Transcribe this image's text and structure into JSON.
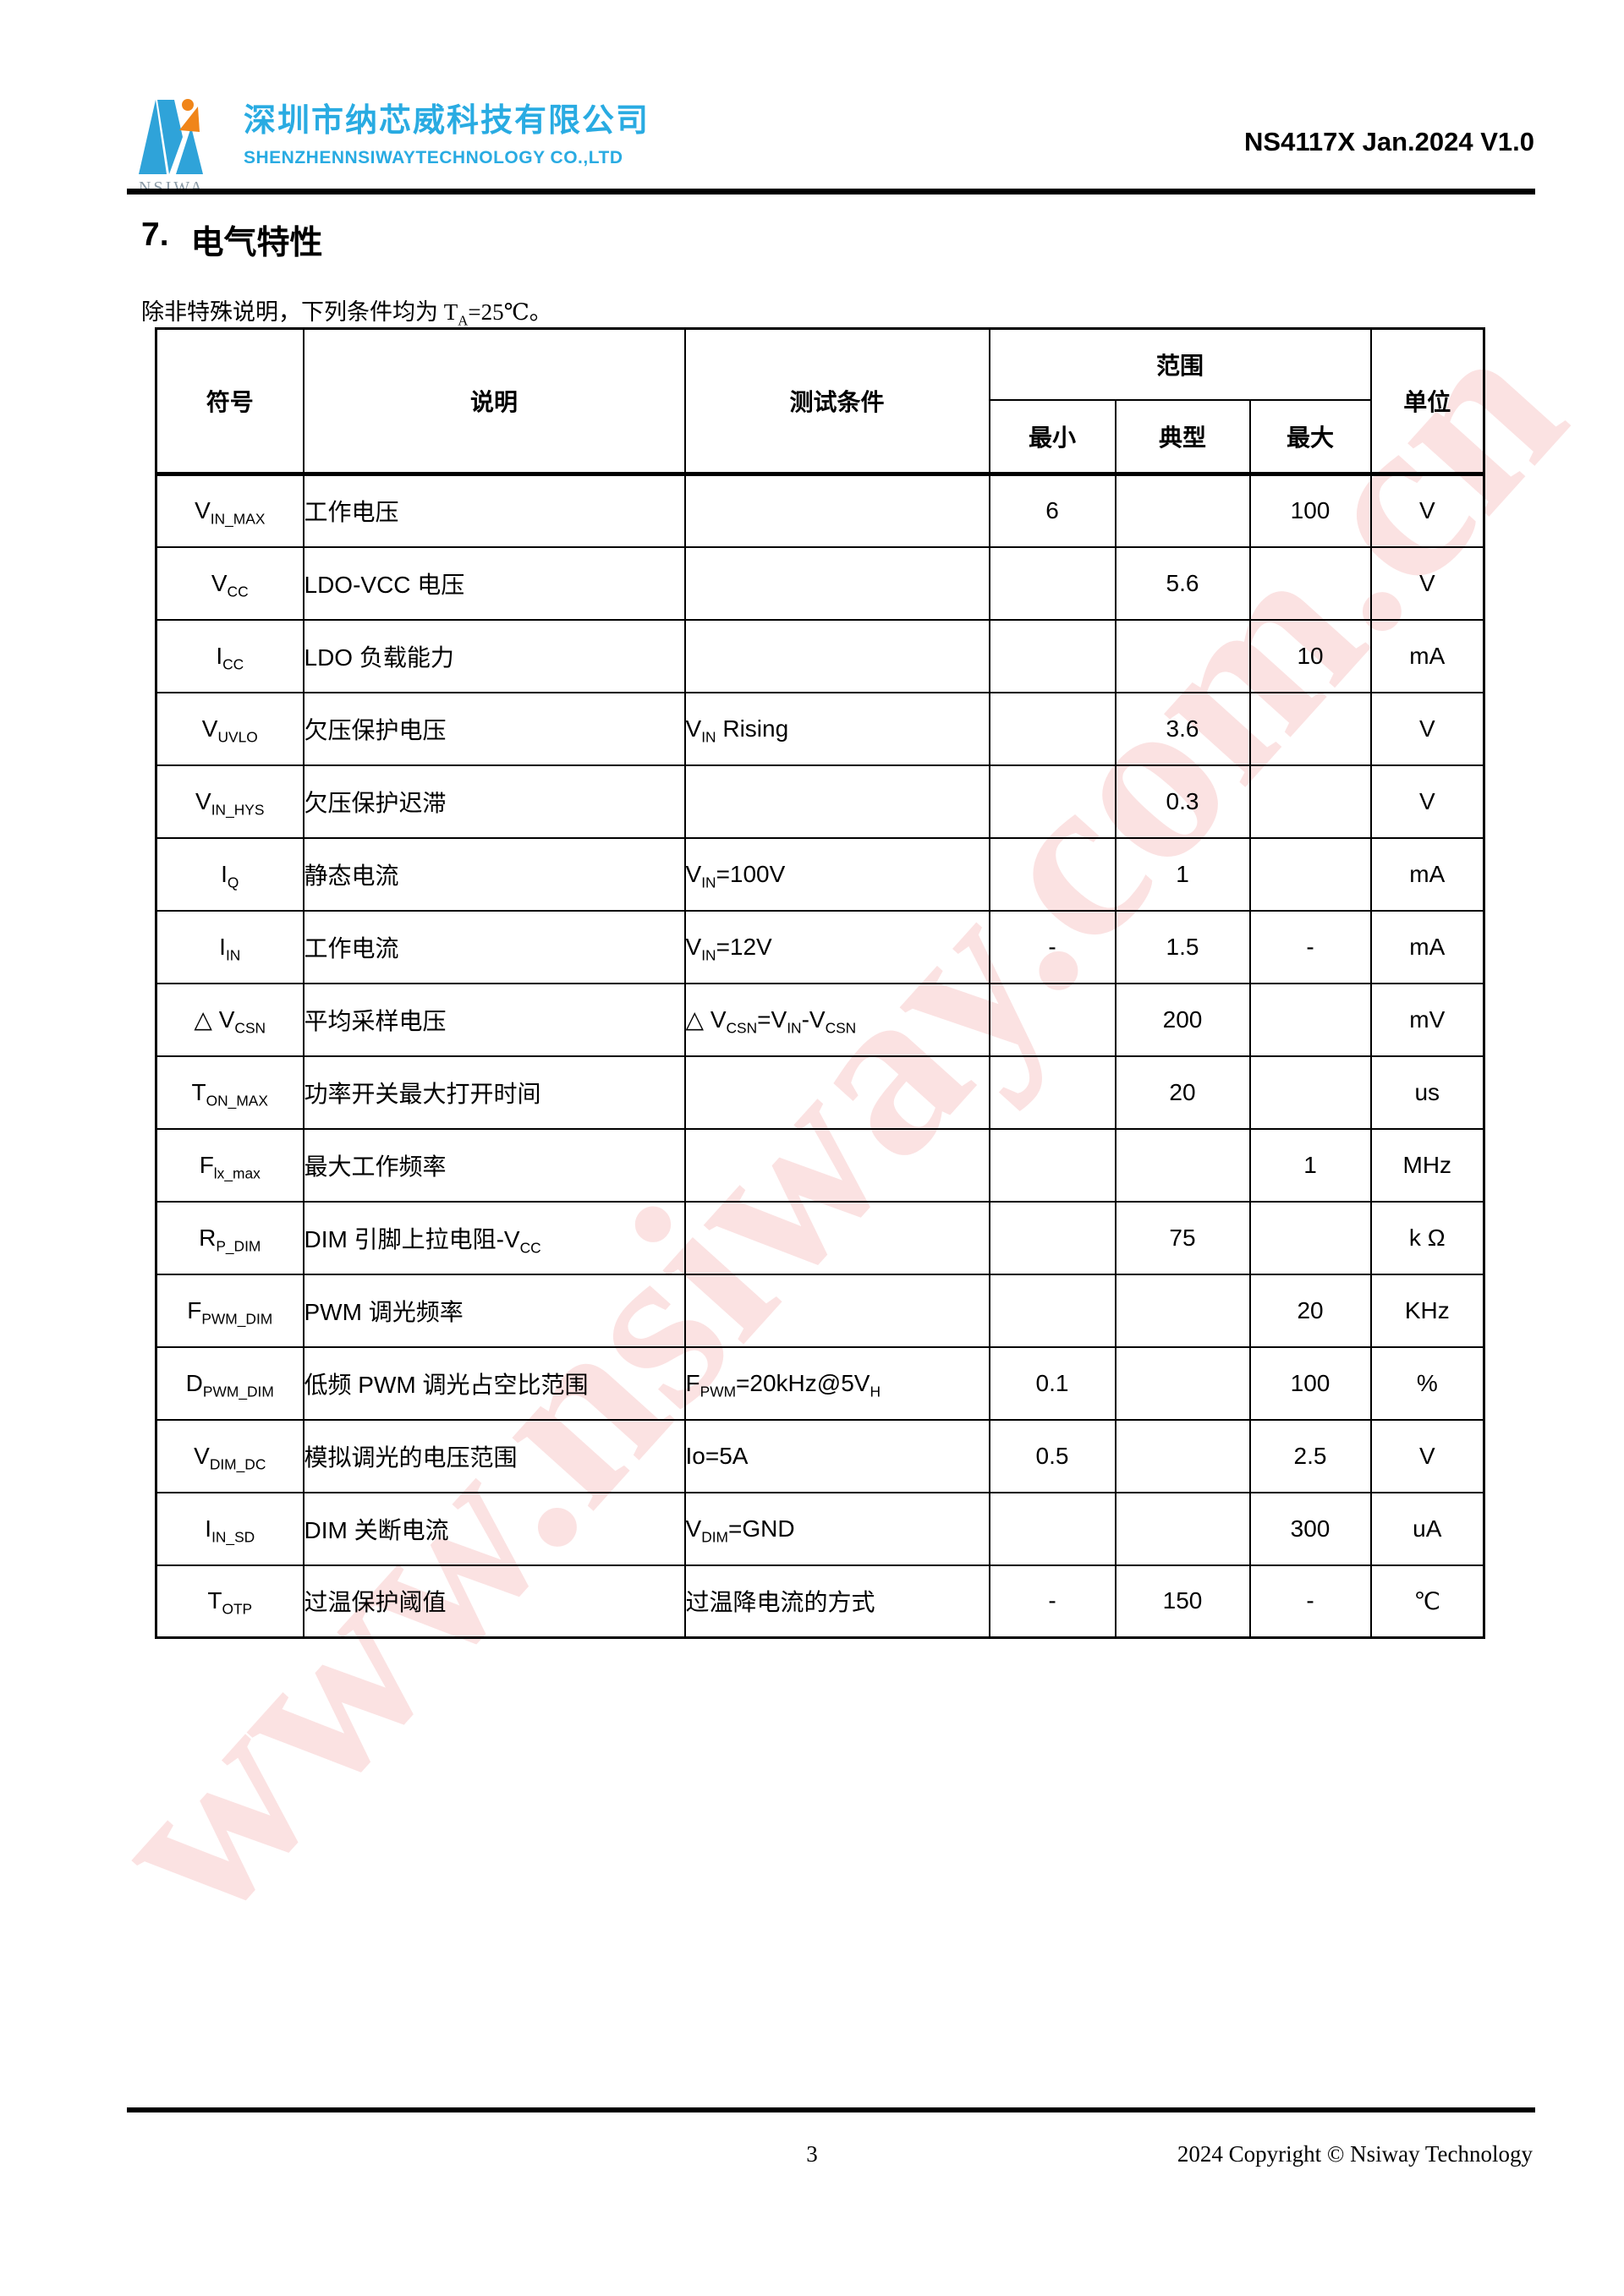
{
  "header": {
    "logo_text": "NSIWA",
    "company_cn": "深圳市纳芯威科技有限公司",
    "company_en": "SHENZHENNSIWAYTECHNOLOGY CO.,LTD",
    "doc_ref": "NS4117X Jan.2024 V1.0"
  },
  "section": {
    "number": "7.",
    "title": "电气特性"
  },
  "note": "除非特殊说明，下列条件均为 T~A~=25℃。",
  "table": {
    "headers": {
      "symbol": "符号",
      "description": "说明",
      "condition": "测试条件",
      "range": "范围",
      "min": "最小",
      "typ": "典型",
      "max": "最大",
      "unit": "单位"
    },
    "rows": [
      {
        "symbol": "V~IN_MAX~",
        "description": "工作电压",
        "condition": "",
        "min": "6",
        "typ": "",
        "max": "100",
        "unit": "V"
      },
      {
        "symbol": "V~CC~",
        "description": "LDO-VCC 电压",
        "condition": "",
        "min": "",
        "typ": "5.6",
        "max": "",
        "unit": "V"
      },
      {
        "symbol": "I~CC~",
        "description": "LDO 负载能力",
        "condition": "",
        "min": "",
        "typ": "",
        "max": "10",
        "unit": "mA"
      },
      {
        "symbol": "V~UVLO~",
        "description": "欠压保护电压",
        "condition": "V~IN~ Rising",
        "min": "",
        "typ": "3.6",
        "max": "",
        "unit": "V"
      },
      {
        "symbol": "V~IN_HYS~",
        "description": "欠压保护迟滞",
        "condition": "",
        "min": "",
        "typ": "0.3",
        "max": "",
        "unit": "V"
      },
      {
        "symbol": "I~Q~",
        "description": "静态电流",
        "condition": "V~IN~=100V",
        "min": "",
        "typ": "1",
        "max": "",
        "unit": "mA"
      },
      {
        "symbol": "I~IN~",
        "description": "工作电流",
        "condition": "V~IN~=12V",
        "min": "-",
        "typ": "1.5",
        "max": "-",
        "unit": "mA"
      },
      {
        "symbol": "△ V~CSN~",
        "description": "平均采样电压",
        "condition": "△ V~CSN~=V~IN~-V~CSN~",
        "min": "",
        "typ": "200",
        "max": "",
        "unit": "mV"
      },
      {
        "symbol": "T~ON_MAX~",
        "description": "功率开关最大打开时间",
        "condition": "",
        "min": "",
        "typ": "20",
        "max": "",
        "unit": "us"
      },
      {
        "symbol": "F~lx_max~",
        "description": "最大工作频率",
        "condition": "",
        "min": "",
        "typ": "",
        "max": "1",
        "unit": "MHz"
      },
      {
        "symbol": "R~P_DIM~",
        "description": "DIM 引脚上拉电阻-V~CC~",
        "condition": "",
        "min": "",
        "typ": "75",
        "max": "",
        "unit": "k Ω"
      },
      {
        "symbol": "F~PWM_DIM~",
        "description": "PWM 调光频率",
        "condition": "",
        "min": "",
        "typ": "",
        "max": "20",
        "unit": "KHz"
      },
      {
        "symbol": "D~PWM_DIM~",
        "description": "低频 PWM 调光占空比范围",
        "condition": "F~PWM~=20kHz@5V~H~",
        "min": "0.1",
        "typ": "",
        "max": "100",
        "unit": "%"
      },
      {
        "symbol": "V~DIM_DC~",
        "description": "模拟调光的电压范围",
        "condition": "Io=5A",
        "min": "0.5",
        "typ": "",
        "max": "2.5",
        "unit": "V"
      },
      {
        "symbol": "I~IN_SD~",
        "description": "DIM 关断电流",
        "condition": "V~DIM~=GND",
        "min": "",
        "typ": "",
        "max": "300",
        "unit": "uA"
      },
      {
        "symbol": "T~OTP~",
        "description": "过温保护阈值",
        "condition": "过温降电流的方式",
        "min": "-",
        "typ": "150",
        "max": "-",
        "unit": "℃"
      }
    ]
  },
  "watermark": "www.nsiway.com.cn",
  "footer": {
    "page_number": "3",
    "copyright": "2024 Copyright © Nsiway Technology"
  },
  "colors": {
    "brand_blue": "#29abe2",
    "logo_orange": "#f08519",
    "watermark_pink": "#f5b9b9"
  }
}
